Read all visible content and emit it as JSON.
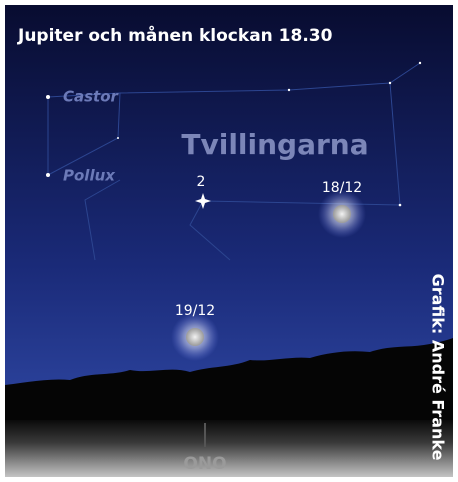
{
  "title": "Jupiter och månen klockan 18.30",
  "credit": "Grafik: André Franke",
  "constellation": {
    "name": "Tvillingarna",
    "stars": [
      "Castor",
      "Pollux"
    ]
  },
  "planet_label": "2",
  "moons": [
    "18/12",
    "19/12"
  ],
  "direction": "ONO"
}
